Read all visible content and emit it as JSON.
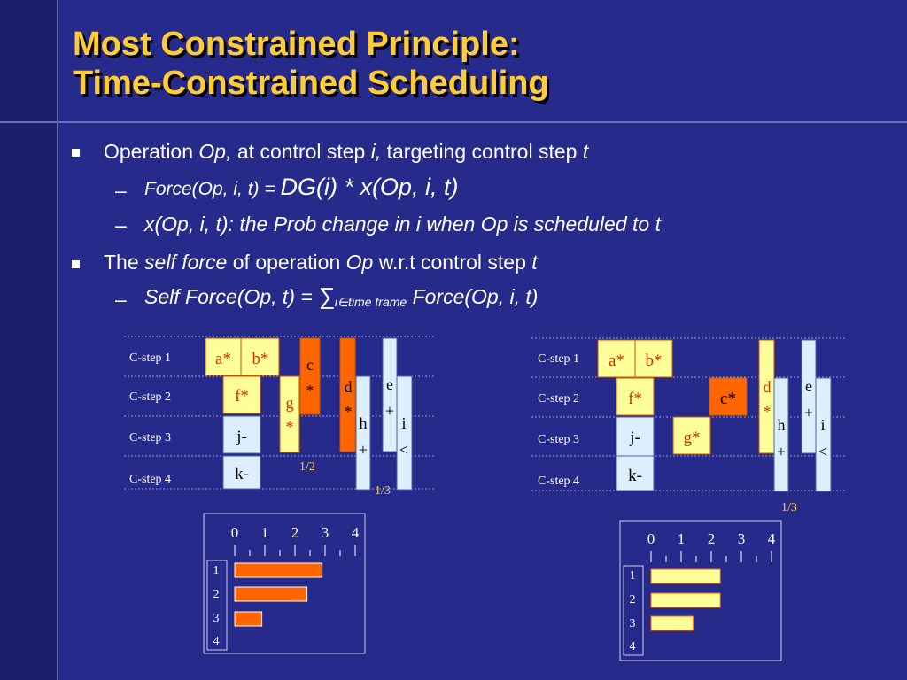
{
  "title": {
    "line1": "Most Constrained Principle:",
    "line2": "Time-Constrained Scheduling"
  },
  "bullets": {
    "b1": {
      "text1": "Operation ",
      "op": "Op,",
      "text2": " at control step ",
      "i": "i,",
      "text3": " targeting control step ",
      "t": "t"
    },
    "sub1": {
      "dash": "–",
      "force_label": "Force(Op, i, t) = ",
      "formula": "DG(i) * x(Op, i, t)"
    },
    "sub2": {
      "dash": "–",
      "text": "x(Op, i, t): the Prob change in i when Op is scheduled to t"
    },
    "b2": {
      "text1": "The ",
      "self_force": "self force",
      "text2": " of operation ",
      "op": "Op",
      "text3": " w.r.t control step ",
      "t": "t"
    },
    "sub3": {
      "dash": "–",
      "lhs": "Self Force(Op, t) = ",
      "sigma": "∑",
      "subscript": "i∈time frame",
      "rhs": " Force(Op, i, t)"
    }
  },
  "left_diagram": {
    "csteps": [
      "C-step 1",
      "C-step 2",
      "C-step 3",
      "C-step 4"
    ],
    "ops": {
      "a": "a*",
      "b": "b*",
      "c": "c",
      "c_star": "*",
      "d": "d",
      "d_star": "*",
      "e": "e",
      "e_plus": "+",
      "f": "f*",
      "g": "g",
      "g_star": "*",
      "h": "h",
      "h_plus": "+",
      "i": "i",
      "i_lt": "<",
      "j": "j-",
      "k": "k-"
    },
    "annotations": {
      "half": "1/2",
      "third": "1/3"
    },
    "dg": {
      "scale_labels": [
        "0",
        "1",
        "2",
        "3",
        "4"
      ],
      "row_labels": [
        "1",
        "2",
        "3",
        "4"
      ],
      "values": [
        2.9,
        2.4,
        0.9,
        0
      ]
    }
  },
  "right_diagram": {
    "csteps": [
      "C-step 1",
      "C-step 2",
      "C-step 3",
      "C-step 4"
    ],
    "ops": {
      "a": "a*",
      "b": "b*",
      "c": "c*",
      "d": "d",
      "d_star": "*",
      "e": "e",
      "e_plus": "+",
      "f": "f*",
      "g": "g*",
      "h": "h",
      "h_plus": "+",
      "i": "i",
      "i_lt": "<",
      "j": "j-",
      "k": "k-"
    },
    "annotations": {
      "third": "1/3"
    },
    "dg": {
      "scale_labels": [
        "0",
        "1",
        "2",
        "3",
        "4"
      ],
      "row_labels": [
        "1",
        "2",
        "3",
        "4"
      ],
      "values": [
        2.3,
        2.3,
        1.4,
        0
      ]
    }
  },
  "colors": {
    "background": "#262a8a",
    "title": "#ffcc33",
    "yellow_op": "#ffff99",
    "orange_op": "#ff6600",
    "blue_op": "#ddeeff",
    "dg_bar_orange": "#ff6600",
    "dg_bar_yellow": "#ffff99"
  }
}
